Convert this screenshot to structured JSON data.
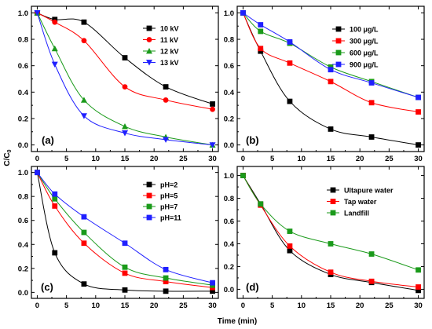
{
  "figure": {
    "xlabel": "Time (min)",
    "ylabel_main": "C/C",
    "ylabel_sub": "0"
  },
  "chart_data": [
    {
      "type": "scatter",
      "panel_label": "(a)",
      "x": [
        0,
        3,
        8,
        15,
        22,
        30
      ],
      "xlim": [
        -1,
        31
      ],
      "ylim": [
        -0.05,
        1.05
      ],
      "xticks": [
        0,
        5,
        10,
        15,
        20,
        25,
        30
      ],
      "yticks": [
        0.0,
        0.2,
        0.4,
        0.6,
        0.8,
        1.0
      ],
      "ytick_labels": [
        "0.0",
        "0.2",
        "0.4",
        "0.6",
        "0.8",
        "1.0"
      ],
      "legend_position": "top-right",
      "series": [
        {
          "name": "10 kV",
          "color": "#000000",
          "marker": "square",
          "values": [
            1.0,
            0.95,
            0.93,
            0.66,
            0.44,
            0.31
          ]
        },
        {
          "name": "11 kV",
          "color": "#ff0000",
          "marker": "circle",
          "values": [
            1.0,
            0.93,
            0.79,
            0.44,
            0.34,
            0.27
          ]
        },
        {
          "name": "12 kV",
          "color": "#1a9a1a",
          "marker": "triangle-up",
          "values": [
            1.0,
            0.73,
            0.34,
            0.14,
            0.06,
            0.0
          ]
        },
        {
          "name": "13 kV",
          "color": "#1f1fff",
          "marker": "triangle-down",
          "values": [
            1.0,
            0.61,
            0.22,
            0.09,
            0.04,
            0.0
          ]
        }
      ]
    },
    {
      "type": "scatter",
      "panel_label": "(b)",
      "x": [
        0,
        3,
        8,
        15,
        22,
        30
      ],
      "xlim": [
        -1,
        31
      ],
      "ylim": [
        -0.05,
        1.05
      ],
      "xticks": [
        0,
        5,
        10,
        15,
        20,
        25,
        30
      ],
      "yticks": [
        0.0,
        0.2,
        0.4,
        0.6,
        0.8,
        1.0
      ],
      "ytick_labels": [
        "0.0",
        "0.2",
        "0.4",
        "0.6",
        "0.8",
        "1.0"
      ],
      "legend_position": "top-right",
      "series": [
        {
          "name": "100 μg/L",
          "color": "#000000",
          "marker": "square",
          "values": [
            1.0,
            0.71,
            0.33,
            0.12,
            0.06,
            0.0
          ]
        },
        {
          "name": "300 μg/L",
          "color": "#ff0000",
          "marker": "square",
          "values": [
            1.0,
            0.73,
            0.62,
            0.48,
            0.32,
            0.25
          ]
        },
        {
          "name": "600 μg/L",
          "color": "#1a9a1a",
          "marker": "square",
          "values": [
            1.0,
            0.86,
            0.77,
            0.59,
            0.48,
            0.36
          ]
        },
        {
          "name": "900 μg/L",
          "color": "#1f1fff",
          "marker": "square",
          "values": [
            1.0,
            0.91,
            0.78,
            0.57,
            0.47,
            0.36
          ]
        }
      ]
    },
    {
      "type": "scatter",
      "panel_label": "(c)",
      "x": [
        0,
        3,
        8,
        15,
        22,
        30
      ],
      "xlim": [
        -1,
        31
      ],
      "ylim": [
        -0.05,
        1.05
      ],
      "xticks": [
        0,
        5,
        10,
        15,
        20,
        25,
        30
      ],
      "yticks": [
        0.0,
        0.2,
        0.4,
        0.6,
        0.8,
        1.0
      ],
      "ytick_labels": [
        "0.0",
        "0.2",
        "0.4",
        "0.6",
        "0.8",
        "1.0"
      ],
      "legend_position": "top-right",
      "series": [
        {
          "name": "pH=2",
          "color": "#000000",
          "marker": "square",
          "values": [
            1.0,
            0.33,
            0.07,
            0.02,
            0.01,
            0.01
          ]
        },
        {
          "name": "pH=5",
          "color": "#ff0000",
          "marker": "square",
          "values": [
            1.0,
            0.72,
            0.41,
            0.16,
            0.09,
            0.04
          ]
        },
        {
          "name": "pH=7",
          "color": "#1a9a1a",
          "marker": "square",
          "values": [
            1.0,
            0.78,
            0.5,
            0.21,
            0.12,
            0.06
          ]
        },
        {
          "name": "pH=11",
          "color": "#1f1fff",
          "marker": "square",
          "values": [
            1.0,
            0.82,
            0.63,
            0.41,
            0.19,
            0.08
          ]
        }
      ]
    },
    {
      "type": "scatter",
      "panel_label": "(d)",
      "x": [
        0,
        3,
        8,
        15,
        22,
        30
      ],
      "xlim": [
        -1,
        31
      ],
      "ylim": [
        -0.08,
        1.08
      ],
      "xticks": [
        0,
        5,
        10,
        15,
        20,
        25,
        30
      ],
      "yticks": [
        0.0,
        0.2,
        0.4,
        0.6,
        0.8,
        1.0
      ],
      "ytick_labels": [
        "0.0",
        "0.2",
        "0.4",
        "0.6",
        "0.8",
        "1.0"
      ],
      "legend_position": "top-right",
      "series": [
        {
          "name": "Ultapure water",
          "color": "#000000",
          "marker": "square",
          "values": [
            1.0,
            0.75,
            0.34,
            0.13,
            0.06,
            -0.01
          ]
        },
        {
          "name": "Tap water",
          "color": "#ff0000",
          "marker": "square",
          "values": [
            1.0,
            0.74,
            0.38,
            0.15,
            0.07,
            0.02
          ]
        },
        {
          "name": "Landfill",
          "color": "#1a9a1a",
          "marker": "square",
          "values": [
            1.0,
            0.75,
            0.51,
            0.4,
            0.31,
            0.17
          ]
        }
      ]
    }
  ]
}
